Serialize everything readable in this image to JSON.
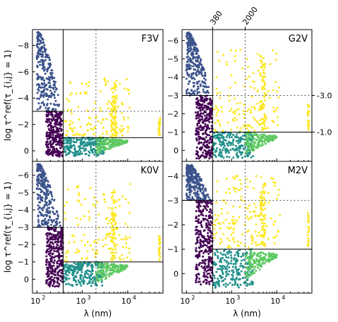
{
  "chart_data": {
    "type": "scatter",
    "ylabel": "log τ^ref(τ_{i,j} = 1)",
    "xlabel": "λ (nm)",
    "x_scale": "log",
    "xlim": [
      80,
      60000
    ],
    "x_tick_labels": [
      "10",
      "2",
      "10",
      "3",
      "10",
      "4"
    ],
    "top_tick_labels": [
      "380",
      "2000"
    ],
    "right_tick_labels": [
      "-3.0",
      "-1.0"
    ],
    "vertical_line_at": 380,
    "dotted_vertical_line_at": 2000,
    "group_colors": [
      "#3b528b",
      "#440154",
      "#21918c",
      "#5ec962",
      "#fde725"
    ],
    "panels": [
      {
        "title": "F3V",
        "ylim": [
          0.8,
          -9.2
        ],
        "yticks": [
          0,
          -2,
          -4,
          -6,
          -8
        ],
        "ytick_labels": [
          "0",
          "−2",
          "−4",
          "−6",
          "−8"
        ],
        "solid_line_y": -1.0,
        "dotted_line_y": -3.0
      },
      {
        "title": "G2V",
        "ylim": [
          0.6,
          -6.6
        ],
        "yticks": [
          0,
          -1,
          -2,
          -3,
          -4,
          -5,
          -6
        ],
        "ytick_labels": [
          "0",
          "−1",
          "−2",
          "−3",
          "−4",
          "−5",
          "−6"
        ],
        "solid_line_y": -1.0,
        "dotted_line_y": -3.0
      },
      {
        "title": "K0V",
        "ylim": [
          0.8,
          -6.8
        ],
        "yticks": [
          0,
          -1,
          -2,
          -3,
          -4,
          -5,
          -6
        ],
        "ytick_labels": [
          "0",
          "−1",
          "−2",
          "−3",
          "−4",
          "−5",
          "−6"
        ],
        "solid_line_y": -1.0,
        "dotted_line_y": -3.0
      },
      {
        "title": "M2V",
        "ylim": [
          0.8,
          -4.6
        ],
        "yticks": [
          0,
          -1,
          -2,
          -3,
          -4
        ],
        "ytick_labels": [
          "0",
          "−1",
          "−2",
          "−3",
          "−4"
        ],
        "solid_line_y": -1.0,
        "dotted_line_y": -3.0
      }
    ],
    "groups_per_panel": {
      "blue": {
        "x_range": [
          100,
          350
        ],
        "y_range": [
          -9,
          -3
        ]
      },
      "purple": {
        "x_range": [
          150,
          380
        ],
        "y_range": [
          -3,
          0.5
        ]
      },
      "teal": {
        "x_range": [
          380,
          3000
        ],
        "y_range": [
          -1,
          0.6
        ]
      },
      "green": {
        "x_range": [
          2000,
          10000
        ],
        "y_range": [
          -1,
          0.2
        ]
      },
      "yellow": {
        "x_range": [
          400,
          50000
        ],
        "y_range": [
          -5.5,
          -1
        ]
      }
    }
  }
}
